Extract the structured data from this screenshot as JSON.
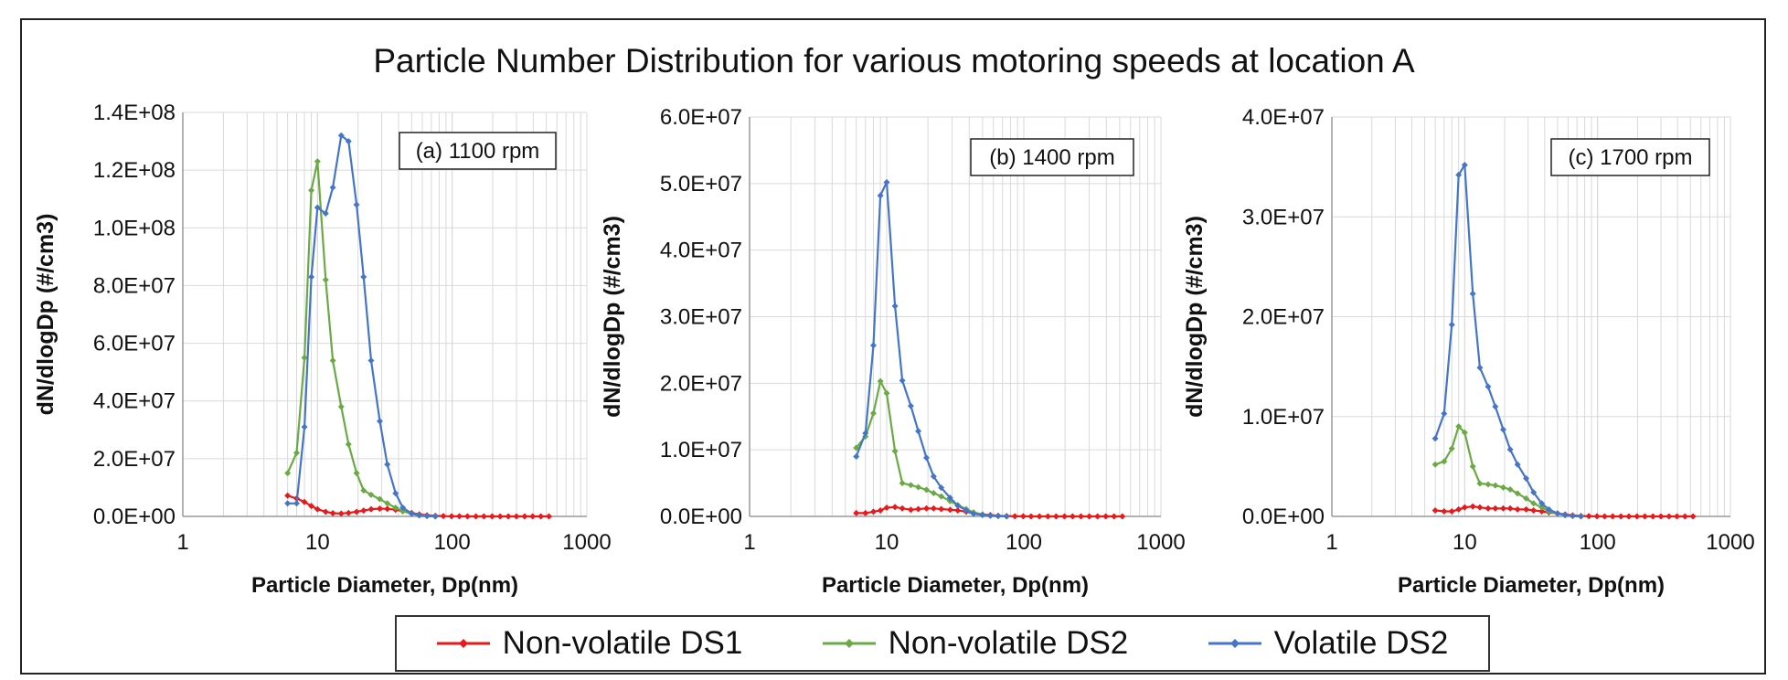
{
  "title": "Particle Number Distribution for various motoring speeds at location A",
  "legend": {
    "entries": [
      {
        "label": "Non-volatile DS1",
        "color": "#e8191b"
      },
      {
        "label": "Non-volatile DS2",
        "color": "#6aaa45"
      },
      {
        "label": "Volatile DS2",
        "color": "#4575c8"
      }
    ]
  },
  "chart_data": [
    {
      "type": "line",
      "annotation": "(a) 1100 rpm",
      "xlabel": "Particle Diameter, Dp(nm)",
      "ylabel": "dN/dlogDp (#/cm3)",
      "x_scale": "log",
      "xlim": [
        1,
        1000
      ],
      "x_ticks": [
        "1",
        "10",
        "100",
        "1000"
      ],
      "ylim": [
        0,
        140000000
      ],
      "y_ticks": [
        "0.0E+00",
        "2.0E+07",
        "4.0E+07",
        "6.0E+07",
        "8.0E+07",
        "1.0E+08",
        "1.2E+08",
        "1.4E+08"
      ],
      "grid": true,
      "series": [
        {
          "name": "Non-volatile DS1",
          "color": "#e8191b",
          "x": [
            6,
            7,
            8,
            9,
            10,
            11.5,
            13,
            15,
            17,
            19.5,
            22,
            25,
            29,
            33,
            38,
            43,
            50,
            57,
            65,
            75,
            86,
            99,
            113,
            130,
            150,
            172,
            198,
            227,
            261,
            300,
            345,
            396,
            455,
            523
          ],
          "y": [
            7200000,
            6200000,
            5000000,
            3600000,
            2500000,
            1600000,
            1100000,
            1000000,
            1200000,
            1600000,
            2000000,
            2500000,
            2700000,
            2600000,
            2300000,
            1800000,
            1200000,
            700000,
            400000,
            200000,
            100000,
            50000,
            20000,
            10000,
            5000,
            0,
            0,
            0,
            0,
            0,
            0,
            0,
            0,
            0
          ]
        },
        {
          "name": "Non-volatile DS2",
          "color": "#6aaa45",
          "x": [
            6,
            7,
            8,
            9,
            10,
            11.5,
            13,
            15,
            17,
            19.5,
            22,
            25,
            29,
            33,
            38,
            43,
            50,
            57,
            65,
            75
          ],
          "y": [
            15000000,
            22000000,
            55000000,
            113000000,
            123000000,
            82000000,
            54000000,
            38000000,
            25000000,
            15000000,
            9000000,
            7500000,
            6000000,
            4500000,
            3000000,
            1800000,
            900000,
            400000,
            150000,
            0
          ]
        },
        {
          "name": "Volatile DS2",
          "color": "#4575c8",
          "x": [
            6,
            7,
            8,
            9,
            10,
            11.5,
            13,
            15,
            17,
            19.5,
            22,
            25,
            29,
            33,
            38,
            43,
            50,
            57,
            65,
            75
          ],
          "y": [
            4500000,
            4500000,
            31000000,
            83000000,
            107000000,
            105000000,
            114000000,
            132000000,
            130000000,
            108000000,
            83000000,
            54000000,
            33000000,
            18000000,
            8000000,
            3000000,
            1000000,
            300000,
            100000,
            0
          ]
        }
      ]
    },
    {
      "type": "line",
      "annotation": "(b) 1400 rpm",
      "xlabel": "Particle Diameter, Dp(nm)",
      "ylabel": "dN/dlogDp (#/cm3)",
      "x_scale": "log",
      "xlim": [
        1,
        1000
      ],
      "x_ticks": [
        "1",
        "10",
        "100",
        "1000"
      ],
      "ylim": [
        0,
        60000000
      ],
      "y_ticks": [
        "0.0E+00",
        "1.0E+07",
        "2.0E+07",
        "3.0E+07",
        "4.0E+07",
        "5.0E+07",
        "6.0E+07"
      ],
      "grid": true,
      "series": [
        {
          "name": "Non-volatile DS1",
          "color": "#e8191b",
          "x": [
            6,
            7,
            8,
            9,
            10,
            11.5,
            13,
            15,
            17,
            19.5,
            22,
            25,
            29,
            33,
            38,
            43,
            50,
            57,
            65,
            75,
            86,
            99,
            113,
            130,
            150,
            172,
            198,
            227,
            261,
            300,
            345,
            396,
            455,
            523
          ],
          "y": [
            500000,
            500000,
            700000,
            900000,
            1300000,
            1400000,
            1200000,
            1000000,
            1100000,
            1200000,
            1200000,
            1100000,
            1000000,
            900000,
            700000,
            500000,
            300000,
            200000,
            100000,
            50000,
            20000,
            10000,
            0,
            0,
            0,
            0,
            0,
            0,
            0,
            0,
            0,
            0,
            0,
            0
          ]
        },
        {
          "name": "Non-volatile DS2",
          "color": "#6aaa45",
          "x": [
            6,
            7,
            8,
            9,
            10,
            11.5,
            13,
            15,
            17,
            19.5,
            22,
            25,
            29,
            33,
            38,
            43,
            50,
            57,
            65,
            75
          ],
          "y": [
            10300000,
            12000000,
            15500000,
            20300000,
            18500000,
            9800000,
            5000000,
            4700000,
            4400000,
            4000000,
            3500000,
            3000000,
            2300000,
            1700000,
            1100000,
            600000,
            300000,
            100000,
            50000,
            0
          ]
        },
        {
          "name": "Volatile DS2",
          "color": "#4575c8",
          "x": [
            6,
            7,
            8,
            9,
            10,
            11.5,
            13,
            15,
            17,
            19.5,
            22,
            25,
            29,
            33,
            38,
            43,
            50,
            57,
            65,
            75
          ],
          "y": [
            9000000,
            12500000,
            25700000,
            48200000,
            50200000,
            31600000,
            20400000,
            16600000,
            12800000,
            8800000,
            6000000,
            4300000,
            2800000,
            1600000,
            900000,
            400000,
            200000,
            100000,
            50000,
            0
          ]
        }
      ]
    },
    {
      "type": "line",
      "annotation": "(c) 1700 rpm",
      "xlabel": "Particle Diameter, Dp(nm)",
      "ylabel": "dN/dlogDp (#/cm3)",
      "x_scale": "log",
      "xlim": [
        1,
        1000
      ],
      "x_ticks": [
        "1",
        "10",
        "100",
        "1000"
      ],
      "ylim": [
        0,
        40000000
      ],
      "y_ticks": [
        "0.0E+00",
        "1.0E+07",
        "2.0E+07",
        "3.0E+07",
        "4.0E+07"
      ],
      "grid": true,
      "series": [
        {
          "name": "Non-volatile DS1",
          "color": "#e8191b",
          "x": [
            6,
            7,
            8,
            9,
            10,
            11.5,
            13,
            15,
            17,
            19.5,
            22,
            25,
            29,
            33,
            38,
            43,
            50,
            57,
            65,
            75,
            86,
            99,
            113,
            130,
            150,
            172,
            198,
            227,
            261,
            300,
            345,
            396,
            455,
            523
          ],
          "y": [
            600000,
            500000,
            500000,
            700000,
            900000,
            1000000,
            900000,
            800000,
            800000,
            800000,
            800000,
            700000,
            700000,
            600000,
            500000,
            400000,
            300000,
            200000,
            100000,
            50000,
            20000,
            10000,
            0,
            0,
            0,
            0,
            0,
            0,
            0,
            0,
            0,
            0,
            0,
            0
          ]
        },
        {
          "name": "Non-volatile DS2",
          "color": "#6aaa45",
          "x": [
            6,
            7,
            8,
            9,
            10,
            11.5,
            13,
            15,
            17,
            19.5,
            22,
            25,
            29,
            33,
            38,
            43,
            50,
            57,
            65,
            75
          ],
          "y": [
            5200000,
            5500000,
            6800000,
            9000000,
            8400000,
            5000000,
            3300000,
            3200000,
            3100000,
            2900000,
            2700000,
            2300000,
            1800000,
            1300000,
            900000,
            500000,
            300000,
            100000,
            50000,
            0
          ]
        },
        {
          "name": "Volatile DS2",
          "color": "#4575c8",
          "x": [
            6,
            7,
            8,
            9,
            10,
            11.5,
            13,
            15,
            17,
            19.5,
            22,
            25,
            29,
            33,
            38,
            43,
            50,
            57,
            65,
            75
          ],
          "y": [
            7800000,
            10300000,
            19200000,
            34200000,
            35200000,
            22300000,
            14900000,
            13000000,
            11000000,
            8700000,
            6700000,
            5200000,
            3800000,
            2400000,
            1300000,
            700000,
            300000,
            150000,
            50000,
            0
          ]
        }
      ]
    }
  ]
}
